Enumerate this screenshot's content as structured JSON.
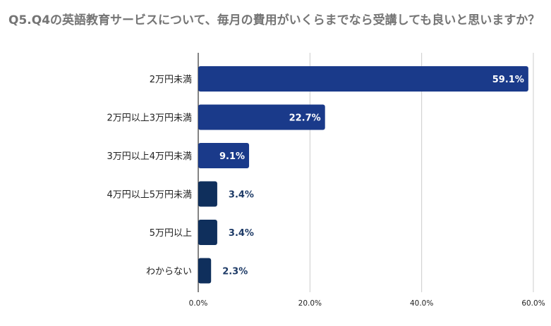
{
  "chart_data": {
    "type": "bar",
    "orientation": "horizontal",
    "title": "Q5.Q4の英語教育サービスについて、毎月の費用がいくらまでなら受講しても良いと思いますか？",
    "categories": [
      "2万円未満",
      "2万円以上3万円未満",
      "3万円以上4万円未満",
      "4万円以上5万円未満",
      "5万円以上",
      "わからない"
    ],
    "values": [
      59.1,
      22.7,
      9.1,
      3.4,
      3.4,
      2.3
    ],
    "value_labels": [
      "59.1%",
      "22.7%",
      "9.1%",
      "3.4%",
      "3.4%",
      "2.3%"
    ],
    "x_ticks": [
      "0.0%",
      "20.0%",
      "40.0%",
      "60.0%"
    ],
    "x_tick_values": [
      0,
      20,
      40,
      60
    ],
    "xlim": [
      0,
      60
    ],
    "grid": true,
    "legend": "none",
    "colors": [
      "#1a3a8a",
      "#1a3a8a",
      "#1a3a8a",
      "#0f2f5c",
      "#0f2f5c",
      "#0f2f5c"
    ],
    "label_color_outside": "#1d3a66",
    "gridline_color": "#cccccc"
  }
}
